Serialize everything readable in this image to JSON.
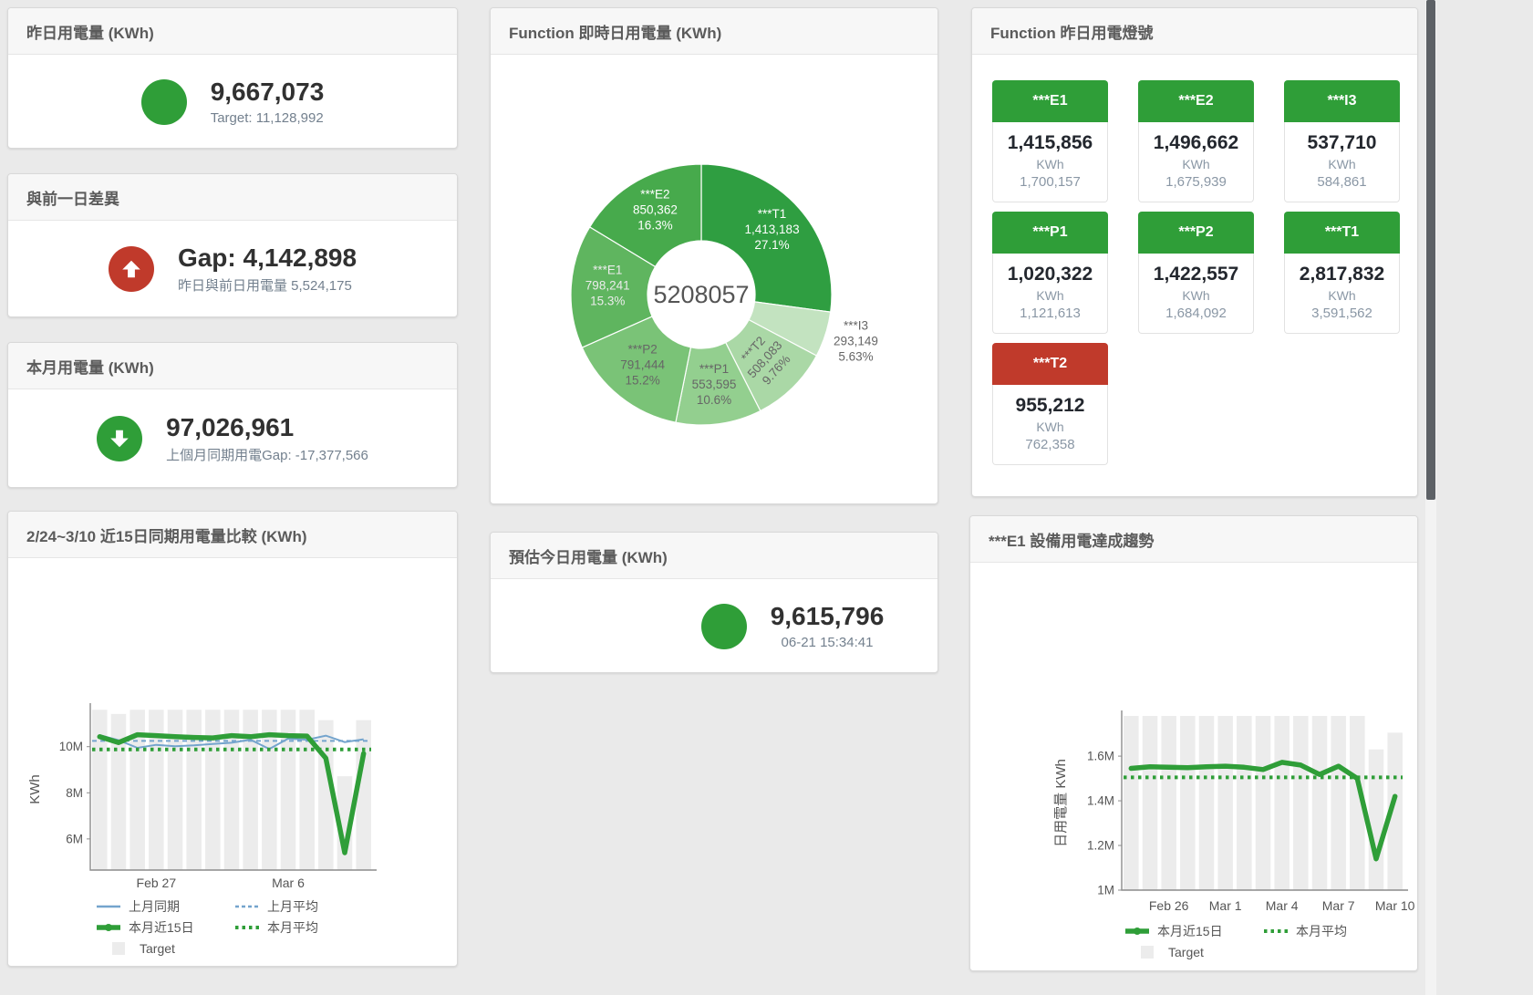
{
  "kpi": [
    {
      "title": "昨日用電量 (KWh)",
      "value": "9,667,073",
      "subtitle": "Target: 11,128,992",
      "icon_color": "#2f9e38",
      "arrow": "none"
    },
    {
      "title": "與前一日差異",
      "value": "Gap: 4,142,898",
      "subtitle": "昨日與前日用電量 5,524,175",
      "icon_color": "#c03a2b",
      "arrow": "up"
    },
    {
      "title": "本月用電量 (KWh)",
      "value": "97,026,961",
      "subtitle": "上個月同期用電Gap: -17,377,566",
      "icon_color": "#2f9e38",
      "arrow": "down"
    },
    {
      "title": "預估今日用電量 (KWh)",
      "value": "9,615,796",
      "subtitle": "06-21 15:34:41",
      "icon_color": "#2f9e38",
      "arrow": "none"
    }
  ],
  "lights": {
    "title": "Function 昨日用電燈號",
    "status_colors": {
      "green": "#2f9e38",
      "red": "#c03a2b"
    },
    "tiles": [
      {
        "label": "***E1",
        "value": "1,415,856",
        "unit": "KWh",
        "target": "1,700,157",
        "status": "green"
      },
      {
        "label": "***E2",
        "value": "1,496,662",
        "unit": "KWh",
        "target": "1,675,939",
        "status": "green"
      },
      {
        "label": "***I3",
        "value": "537,710",
        "unit": "KWh",
        "target": "584,861",
        "status": "green"
      },
      {
        "label": "***P1",
        "value": "1,020,322",
        "unit": "KWh",
        "target": "1,121,613",
        "status": "green"
      },
      {
        "label": "***P2",
        "value": "1,422,557",
        "unit": "KWh",
        "target": "1,684,092",
        "status": "green"
      },
      {
        "label": "***T1",
        "value": "2,817,832",
        "unit": "KWh",
        "target": "3,591,562",
        "status": "green"
      },
      {
        "label": "***T2",
        "value": "955,212",
        "unit": "KWh",
        "target": "762,358",
        "status": "red"
      }
    ]
  },
  "chart_data": [
    {
      "type": "pie",
      "title": "Function 即時日用電量 (KWh)",
      "center_total": "5208057",
      "legend_position": "none",
      "slices": [
        {
          "name": "***T1",
          "value": 1413183,
          "display": "1,413,183",
          "pct": "27.1%",
          "color": "#2f9e41",
          "text": "#ffffff"
        },
        {
          "name": "***I3",
          "value": 293149,
          "display": "293,149",
          "pct": "5.63%",
          "color": "#c3e3c0",
          "text": "#666666",
          "outside": true
        },
        {
          "name": "***T2",
          "value": 508083,
          "display": "508,083",
          "pct": "9.76%",
          "color": "#aad8a6",
          "text": "#666666",
          "rotate": -48
        },
        {
          "name": "***P1",
          "value": 553595,
          "display": "553,595",
          "pct": "10.6%",
          "color": "#93cf8f",
          "text": "#666666"
        },
        {
          "name": "***P2",
          "value": 791444,
          "display": "791,444",
          "pct": "15.2%",
          "color": "#7ac377",
          "text": "#666666"
        },
        {
          "name": "***E1",
          "value": 798241,
          "display": "798,241",
          "pct": "15.3%",
          "color": "#5fb55f",
          "text": "#ececec"
        },
        {
          "name": "***E2",
          "value": 850362,
          "display": "850,362",
          "pct": "16.3%",
          "color": "#47aa4c",
          "text": "#ffffff"
        }
      ]
    },
    {
      "type": "line",
      "title": "2/24~3/10 近15日同期用電量比較 (KWh)",
      "ylabel": "KWh",
      "ylim": [
        4650000,
        11650000
      ],
      "yticks": [
        {
          "v": 6000000,
          "t": "6M"
        },
        {
          "v": 8000000,
          "t": "8M"
        },
        {
          "v": 10000000,
          "t": "10M"
        }
      ],
      "categories": [
        "2/24",
        "2/25",
        "2/26",
        "2/27",
        "2/28",
        "3/1",
        "3/2",
        "3/3",
        "3/4",
        "3/5",
        "3/6",
        "3/7",
        "3/8",
        "3/9",
        "3/10"
      ],
      "xticks": [
        {
          "i": 3,
          "t": "Feb 27"
        },
        {
          "i": 10,
          "t": "Mar 6"
        }
      ],
      "target_bars": {
        "name": "Target",
        "color": "#ececec",
        "values": [
          11600000,
          11420000,
          11600000,
          11600000,
          11600000,
          11600000,
          11600000,
          11600000,
          11600000,
          11600000,
          11600000,
          11600000,
          11150000,
          8720000,
          11150000
        ]
      },
      "series": [
        {
          "name": "上月同期",
          "color": "#74a4cd",
          "w": 2,
          "style": "solid",
          "values": [
            10500000,
            10280000,
            9950000,
            10080000,
            10020000,
            10060000,
            10120000,
            10170000,
            10300000,
            9900000,
            10350000,
            10300000,
            10480000,
            10200000,
            10320000
          ]
        },
        {
          "name": "上月平均",
          "color": "#74a4cd",
          "w": 2,
          "style": "dash",
          "cval": 10250000
        },
        {
          "name": "本月近15日",
          "color": "#2f9e38",
          "w": 5.5,
          "style": "solid",
          "values": [
            10430000,
            10180000,
            10520000,
            10480000,
            10430000,
            10400000,
            10380000,
            10480000,
            10430000,
            10520000,
            10480000,
            10460000,
            9500000,
            5400000,
            9700000
          ]
        },
        {
          "name": "本月平均",
          "color": "#2f9e38",
          "w": 4,
          "style": "dots",
          "cval": 9880000
        }
      ],
      "legend": [
        [
          {
            "sw": "line",
            "color": "#74a4cd",
            "label": "上月同期"
          },
          {
            "sw": "dash",
            "color": "#74a4cd",
            "label": "上月平均"
          }
        ],
        [
          {
            "sw": "thick",
            "color": "#2f9e38",
            "label": "本月近15日"
          },
          {
            "sw": "dots",
            "color": "#2f9e38",
            "label": "本月平均"
          }
        ],
        [
          {
            "sw": "bar",
            "color": "#ececec",
            "label": "Target"
          }
        ]
      ]
    },
    {
      "type": "line",
      "title": "***E1 設備用電達成趨勢",
      "ylabel": "日用電量 KWh",
      "ylim": [
        1000000,
        1780000
      ],
      "yticks": [
        {
          "v": 1000000,
          "t": "1M"
        },
        {
          "v": 1200000,
          "t": "1.2M"
        },
        {
          "v": 1400000,
          "t": "1.4M"
        },
        {
          "v": 1600000,
          "t": "1.6M"
        }
      ],
      "categories": [
        "2/24",
        "2/25",
        "2/26",
        "2/27",
        "2/28",
        "3/1",
        "3/2",
        "3/3",
        "3/4",
        "3/5",
        "3/6",
        "3/7",
        "3/8",
        "3/9",
        "3/10"
      ],
      "xticks": [
        {
          "i": 2,
          "t": "Feb 26"
        },
        {
          "i": 5,
          "t": "Mar 1"
        },
        {
          "i": 8,
          "t": "Mar 4"
        },
        {
          "i": 11,
          "t": "Mar 7"
        },
        {
          "i": 14,
          "t": "Mar 10"
        }
      ],
      "target_bars": {
        "name": "Target",
        "color": "#ececec",
        "values": [
          1780000,
          1780000,
          1780000,
          1780000,
          1780000,
          1780000,
          1780000,
          1780000,
          1780000,
          1780000,
          1780000,
          1780000,
          1780000,
          1630000,
          1705000
        ]
      },
      "series": [
        {
          "name": "本月近15日",
          "color": "#2f9e38",
          "w": 5.5,
          "style": "solid",
          "values": [
            1545000,
            1552000,
            1550000,
            1548000,
            1552000,
            1555000,
            1550000,
            1540000,
            1572000,
            1560000,
            1518000,
            1555000,
            1500000,
            1140000,
            1420000
          ]
        },
        {
          "name": "本月平均",
          "color": "#2f9e38",
          "w": 4,
          "style": "dots",
          "cval": 1505000
        }
      ],
      "legend": [
        [
          {
            "sw": "thick",
            "color": "#2f9e38",
            "label": "本月近15日"
          },
          {
            "sw": "dots",
            "color": "#2f9e38",
            "label": "本月平均"
          }
        ],
        [
          {
            "sw": "bar",
            "color": "#ececec",
            "label": "Target"
          }
        ]
      ]
    }
  ]
}
